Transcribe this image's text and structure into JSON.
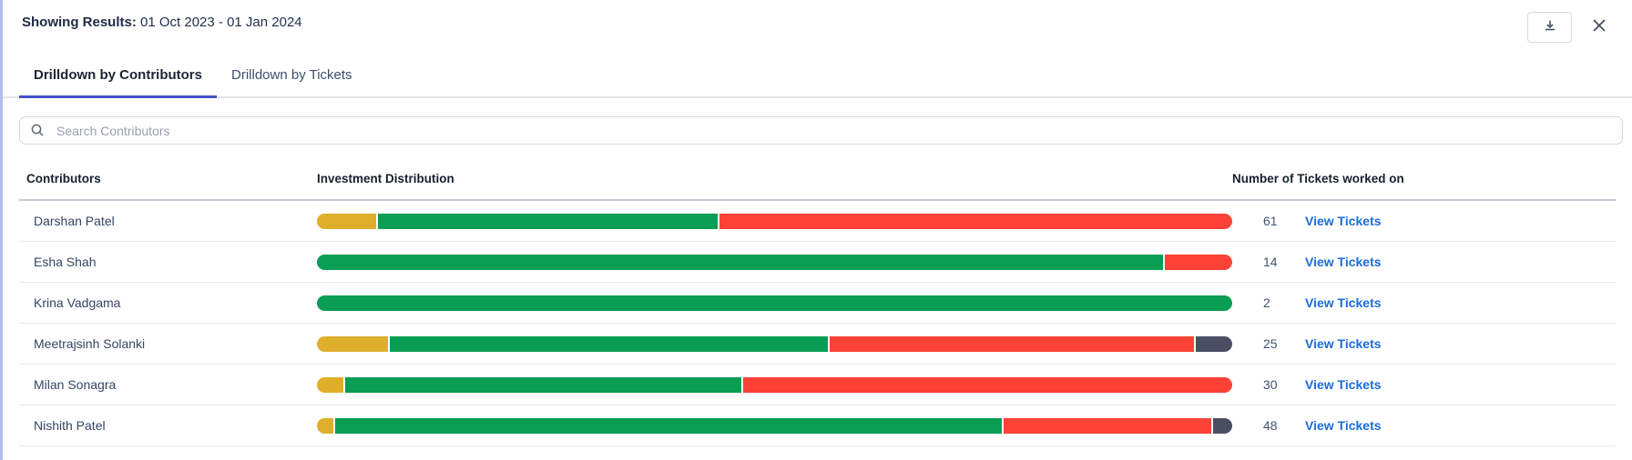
{
  "header": {
    "results_label": "Showing Results:",
    "results_value": " 01 Oct 2023 - 01 Jan 2024",
    "download_icon": "download-tray",
    "close_icon": "close-x"
  },
  "tabs": [
    {
      "label": "Drilldown by Contributors",
      "active": true
    },
    {
      "label": "Drilldown by Tickets",
      "active": false
    }
  ],
  "search": {
    "placeholder": "Search Contributors",
    "icon": "magnifier"
  },
  "table": {
    "columns": [
      "Contributors",
      "Investment Distribution",
      "Number of Tickets worked on"
    ],
    "link_label": "View Tickets",
    "rows": [
      {
        "name": "Darshan Patel",
        "tickets": "61",
        "segments": [
          {
            "color": "yellow",
            "pct": 6.5
          },
          {
            "color": "green",
            "pct": 37.1
          },
          {
            "color": "red",
            "pct": 56.0
          }
        ]
      },
      {
        "name": "Esha Shah",
        "tickets": "14",
        "segments": [
          {
            "color": "green",
            "pct": 92.6
          },
          {
            "color": "red",
            "pct": 7.4
          }
        ]
      },
      {
        "name": "Krina Vadgama",
        "tickets": "2",
        "segments": [
          {
            "color": "green",
            "pct": 100
          }
        ]
      },
      {
        "name": "Meetrajsinh Solanki",
        "tickets": "25",
        "segments": [
          {
            "color": "yellow",
            "pct": 7.8
          },
          {
            "color": "green",
            "pct": 47.8
          },
          {
            "color": "red",
            "pct": 39.7
          },
          {
            "color": "dark",
            "pct": 4.0
          }
        ]
      },
      {
        "name": "Milan Sonagra",
        "tickets": "30",
        "segments": [
          {
            "color": "yellow",
            "pct": 2.9
          },
          {
            "color": "green",
            "pct": 43.3
          },
          {
            "color": "red",
            "pct": 53.4
          }
        ]
      },
      {
        "name": "Nishith Patel",
        "tickets": "48",
        "segments": [
          {
            "color": "yellow",
            "pct": 1.8
          },
          {
            "color": "green",
            "pct": 72.8
          },
          {
            "color": "red",
            "pct": 22.7
          },
          {
            "color": "dark",
            "pct": 2.1
          }
        ]
      }
    ]
  },
  "colors": {
    "yellow": "#dfae2b",
    "green": "#0a9d54",
    "red": "#fc4236",
    "dark": "#4b4e63",
    "link_blue": "#1d6bd8",
    "tab_active_underline": "#4353c9",
    "panel_left_border": "#b3bcec"
  }
}
